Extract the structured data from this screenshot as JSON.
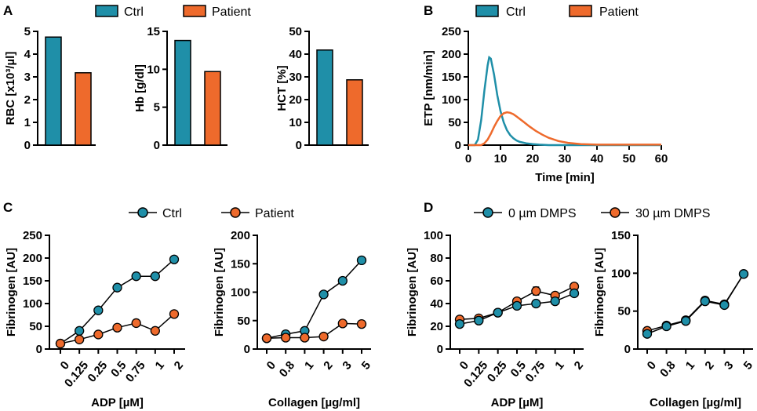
{
  "colors": {
    "ctrl": "#1f8fa8",
    "patient": "#ee6a2c",
    "stroke": "#000000"
  },
  "panels": {
    "A": {
      "letter": "A",
      "legend": [
        "Ctrl",
        "Patient"
      ]
    },
    "B": {
      "letter": "B",
      "legend": [
        "Ctrl",
        "Patient"
      ]
    },
    "C": {
      "letter": "C",
      "legend": [
        "Ctrl",
        "Patient"
      ]
    },
    "D": {
      "letter": "D",
      "legend": [
        "0 µm DMPS",
        "30 µm DMPS"
      ]
    }
  },
  "chart_data": [
    {
      "id": "A1",
      "panel": "A",
      "type": "bar",
      "ylabel": "RBC [x10³/µl]",
      "categories": [
        "Ctrl",
        "Patient"
      ],
      "values": [
        4.75,
        3.18
      ],
      "ylim": [
        0,
        5
      ],
      "yticks": [
        0,
        1,
        2,
        3,
        4,
        5
      ]
    },
    {
      "id": "A2",
      "panel": "A",
      "type": "bar",
      "ylabel": "Hb [g/dl]",
      "categories": [
        "Ctrl",
        "Patient"
      ],
      "values": [
        13.8,
        9.7
      ],
      "ylim": [
        0,
        15
      ],
      "yticks": [
        0,
        5,
        10,
        15
      ]
    },
    {
      "id": "A3",
      "panel": "A",
      "type": "bar",
      "ylabel": "HCT [%]",
      "categories": [
        "Ctrl",
        "Patient"
      ],
      "values": [
        41.8,
        28.7
      ],
      "ylim": [
        0,
        50
      ],
      "yticks": [
        0,
        10,
        20,
        30,
        40,
        50
      ]
    },
    {
      "id": "B",
      "panel": "B",
      "type": "line",
      "xlabel": "Time [min]",
      "ylabel": "ETP [nm/min]",
      "xlim": [
        0,
        60
      ],
      "xticks": [
        0,
        10,
        20,
        30,
        40,
        50,
        60
      ],
      "ylim": [
        0,
        250
      ],
      "yticks": [
        0,
        50,
        100,
        150,
        200,
        250
      ],
      "series": [
        {
          "name": "Ctrl",
          "x": [
            0,
            2,
            3,
            4,
            5,
            6,
            6.5,
            7,
            8,
            9,
            10,
            11,
            12,
            13,
            14,
            15,
            16,
            18,
            20,
            22,
            25,
            60
          ],
          "y": [
            0,
            0,
            12,
            55,
            120,
            175,
            193,
            190,
            155,
            110,
            75,
            50,
            33,
            22,
            15,
            10,
            7,
            4,
            2,
            1,
            0,
            0
          ]
        },
        {
          "name": "Patient",
          "x": [
            0,
            4,
            5,
            6,
            7,
            8,
            9,
            10,
            11,
            12,
            13,
            14,
            15,
            17,
            19,
            21,
            23,
            25,
            28,
            31,
            35,
            40,
            60
          ],
          "y": [
            0,
            0,
            4,
            12,
            25,
            40,
            53,
            64,
            70,
            72,
            71,
            68,
            63,
            52,
            41,
            31,
            23,
            16,
            9,
            5,
            2,
            1,
            1
          ]
        }
      ]
    },
    {
      "id": "C1",
      "panel": "C",
      "type": "line",
      "xlabel": "ADP [µM]",
      "ylabel": "Fibrinogen [AU]",
      "categories": [
        "0",
        "0.125",
        "0.25",
        "0.5",
        "0.75",
        "1",
        "2"
      ],
      "ylim": [
        0,
        250
      ],
      "yticks": [
        0,
        50,
        100,
        150,
        200,
        250
      ],
      "series": [
        {
          "name": "Ctrl",
          "values": [
            12,
            40,
            85,
            135,
            160,
            160,
            197
          ]
        },
        {
          "name": "Patient",
          "values": [
            12,
            21,
            32,
            47,
            57,
            40,
            77
          ]
        }
      ]
    },
    {
      "id": "C2",
      "panel": "C",
      "type": "line",
      "xlabel": "Collagen [µg/ml]",
      "ylabel": "Fibrinogen [AU]",
      "categories": [
        "0",
        "0.8",
        "1",
        "2",
        "3",
        "5"
      ],
      "ylim": [
        0,
        200
      ],
      "yticks": [
        0,
        50,
        100,
        150,
        200
      ],
      "series": [
        {
          "name": "Ctrl",
          "values": [
            19,
            26,
            32,
            96,
            120,
            156
          ]
        },
        {
          "name": "Patient",
          "values": [
            19,
            20,
            20,
            22,
            45,
            44
          ]
        }
      ]
    },
    {
      "id": "D1",
      "panel": "D",
      "type": "line",
      "xlabel": "ADP [µM]",
      "ylabel": "Fibrinogen [AU]",
      "categories": [
        "0",
        "0.125",
        "0.25",
        "0.5",
        "0.75",
        "1",
        "2"
      ],
      "ylim": [
        0,
        100
      ],
      "yticks": [
        0,
        20,
        40,
        60,
        80,
        100
      ],
      "series": [
        {
          "name": "0 µm DMPS",
          "values": [
            22,
            25,
            32,
            38,
            40,
            42,
            49
          ],
          "err": [
            1.5,
            1.5,
            1,
            1.5,
            2.5,
            1.5,
            1.5
          ]
        },
        {
          "name": "30 µm DMPS",
          "values": [
            26,
            27,
            32,
            42,
            51,
            47,
            55
          ],
          "err": [
            1.5,
            1,
            1,
            1.5,
            3.5,
            2,
            1.5
          ]
        }
      ]
    },
    {
      "id": "D2",
      "panel": "D",
      "type": "line",
      "xlabel": "Collagen [µg/ml]",
      "ylabel": "Fibrinogen [AU]",
      "categories": [
        "0",
        "0.8",
        "1",
        "2",
        "3",
        "5"
      ],
      "ylim": [
        0,
        150
      ],
      "yticks": [
        0,
        50,
        100,
        150
      ],
      "series": [
        {
          "name": "0 µm DMPS",
          "values": [
            20,
            30,
            37,
            63,
            58,
            99
          ]
        },
        {
          "name": "30 µm DMPS",
          "values": [
            24,
            31,
            38,
            64,
            59,
            99
          ]
        }
      ]
    }
  ]
}
